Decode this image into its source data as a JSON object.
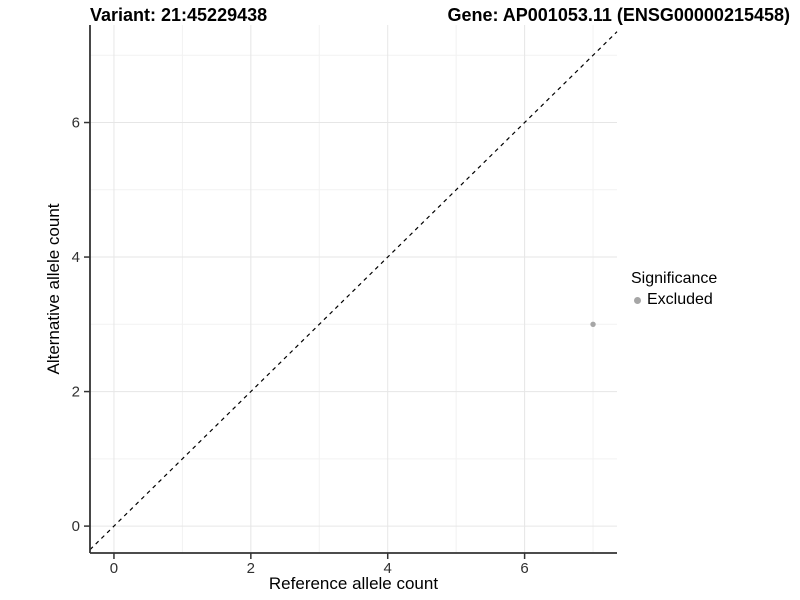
{
  "titles": {
    "left": "Variant: 21:45229438",
    "right": "Gene: AP001053.11 (ENSG00000215458)"
  },
  "chart_data": {
    "type": "scatter",
    "xlabel": "Reference allele count",
    "ylabel": "Alternative allele count",
    "xlim": [
      -0.35,
      7.35
    ],
    "ylim": [
      -0.4,
      7.45
    ],
    "x_major_ticks": [
      0,
      2,
      4,
      6
    ],
    "y_major_ticks": [
      0,
      2,
      4,
      6
    ],
    "x_minor_ticks": [
      1,
      3,
      5,
      7
    ],
    "y_minor_ticks": [
      1,
      3,
      5,
      7
    ],
    "grid": true,
    "points": [
      {
        "x": 7,
        "y": 3,
        "series": "Excluded"
      }
    ],
    "reference_line": {
      "kind": "abline",
      "slope": 1,
      "intercept": 0,
      "style": "dashed"
    },
    "legend": {
      "title": "Significance",
      "position": "right",
      "entries": [
        {
          "label": "Excluded",
          "color": "#a6a6a6",
          "marker": "circle"
        }
      ]
    },
    "colors": {
      "point": "#a6a6a6",
      "grid_major": "#e6e6e6",
      "grid_minor": "#f2f2f2",
      "axis_line": "#333333",
      "tick_label": "#303030",
      "reference_line": "#000000"
    }
  }
}
